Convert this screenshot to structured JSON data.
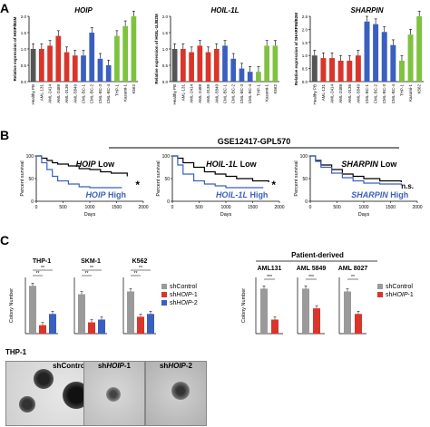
{
  "panels": {
    "A": "A",
    "B": "B",
    "C": "C"
  },
  "panelA": {
    "ylabels": {
      "HOIP": "Relative expression of HOIP/B2M",
      "HOIL1L": "Relative expression of HOIL-1L/B2M",
      "SHARPIN": "Relative expression of SHARPIN/B2M"
    },
    "categories": [
      "Healthy PB",
      "AML-131",
      "AML-2414",
      "AML-2488",
      "AML-3136",
      "AML-5849",
      "CML-BC-1",
      "CML-BC-2",
      "CML-BC-3",
      "CML-BC-4",
      "THP-1",
      "Kasumi-1",
      "K562"
    ],
    "bar_colors": [
      "#555555",
      "#d9352b",
      "#d9352b",
      "#d9352b",
      "#d9352b",
      "#d9352b",
      "#3a5fbf",
      "#3a5fbf",
      "#3a5fbf",
      "#3a5fbf",
      "#7fc241",
      "#7fc241",
      "#7fc241"
    ]
  },
  "panelB": {
    "dataset": "GSE12417-GPL570",
    "ylabel": "Percent survival",
    "xlabel": "Days",
    "xticks": [
      "0",
      "500",
      "1000",
      "1500",
      "2000"
    ],
    "yticks": [
      "0",
      "50",
      "100"
    ],
    "plots": [
      {
        "gene": "HOIP",
        "low_label": " Low",
        "high_label": " High",
        "sig": "*"
      },
      {
        "gene": "HOIL-1L",
        "low_label": " Low",
        "high_label": " High",
        "sig": "*"
      },
      {
        "gene": "SHARPIN",
        "low_label": " Low",
        "high_label": " High",
        "sig": "n.s."
      }
    ]
  },
  "panelC": {
    "cell_lines": [
      "THP-1",
      "SKM-1",
      "K562"
    ],
    "patient_title": "Patient-derived",
    "patients": [
      "AML131",
      "AML 5849",
      "AML 8027"
    ],
    "ylabel": "Colony Number",
    "legend_left": [
      "shControl",
      "shHOIP-1",
      "shHOIP-2"
    ],
    "legend_right": [
      "shControl",
      "shHOIP-1"
    ],
    "legend_prefix": [
      "sh",
      "sh"
    ],
    "legend_gene": "HOIP",
    "legend_suffix": [
      "-1",
      "-2"
    ],
    "legend_control": "shControl",
    "colors": {
      "control": "#9a9a9a",
      "hoip1": "#d9352b",
      "hoip2": "#3a5fbf"
    },
    "micro_cell": "THP-1",
    "micro_labels": [
      "shControl",
      "sh",
      "sh"
    ],
    "micro_gene": "HOIP",
    "micro_suffix": [
      "",
      "-1",
      "-2"
    ],
    "sig_left": [
      [
        "**",
        "**"
      ],
      [
        "**",
        "**"
      ],
      [
        "**",
        "**"
      ]
    ],
    "sig_right": [
      "***",
      "***",
      "**"
    ]
  },
  "chart_data": [
    {
      "type": "bar",
      "title": "HOIP",
      "categories": [
        "Healthy PB",
        "AML-131",
        "AML-2414",
        "AML-2488",
        "AML-3136",
        "AML-5849",
        "CML-BC-1",
        "CML-BC-2",
        "CML-BC-3",
        "CML-BC-4",
        "THP-1",
        "Kasumi-1",
        "K562"
      ],
      "values": [
        1.0,
        1.0,
        1.1,
        1.4,
        0.9,
        0.8,
        0.8,
        1.5,
        0.7,
        0.5,
        1.4,
        1.7,
        2.0
      ],
      "ylim": [
        0,
        2.0
      ]
    },
    {
      "type": "bar",
      "title": "HOIL-1L",
      "categories": [
        "Healthy PB",
        "AML-131",
        "AML-2414",
        "AML-2488",
        "AML-3136",
        "AML-5849",
        "CML-BC-1",
        "CML-BC-2",
        "CML-BC-3",
        "CML-BC-4",
        "THP-1",
        "Kasumi-1",
        "K562"
      ],
      "values": [
        1.0,
        1.0,
        0.9,
        1.1,
        0.9,
        1.0,
        1.1,
        0.7,
        0.4,
        0.3,
        0.3,
        1.1,
        1.1
      ],
      "ylim": [
        0,
        2.0
      ]
    },
    {
      "type": "bar",
      "title": "SHARPIN",
      "categories": [
        "Healthy PB",
        "AML-131",
        "AML-2414",
        "AML-2488",
        "AML-3136",
        "AML-5849",
        "CML-BC-1",
        "CML-BC-2",
        "CML-BC-3",
        "CML-BC-4",
        "THP-1",
        "Kasumi-1",
        "K562"
      ],
      "values": [
        1.0,
        0.9,
        0.9,
        0.8,
        0.8,
        1.0,
        2.3,
        2.2,
        1.9,
        1.4,
        0.8,
        1.8,
        2.5
      ],
      "ylim": [
        0,
        2.5
      ]
    }
  ]
}
